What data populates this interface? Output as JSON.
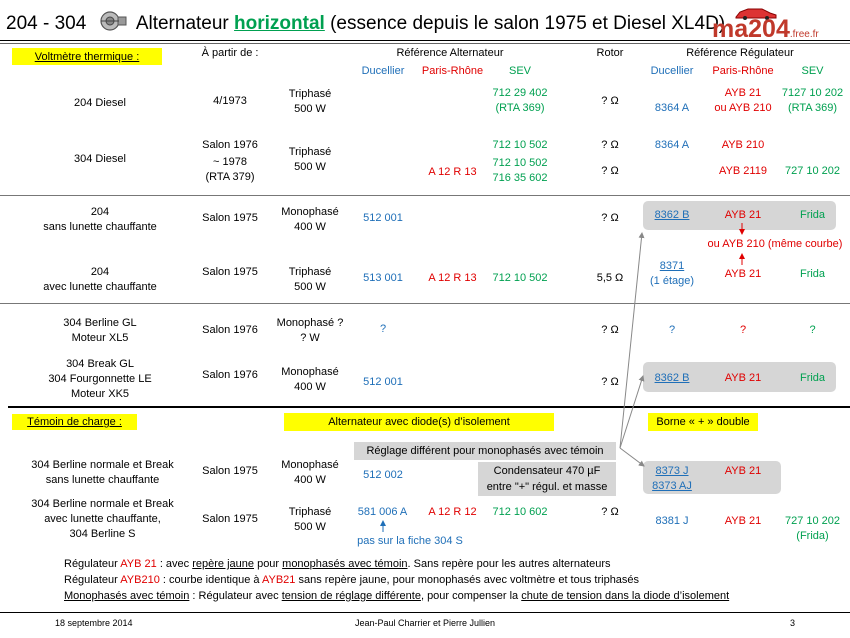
{
  "title": {
    "prefix": "204 - 304",
    "main": "Alternateur ",
    "highlight": "horizontal",
    "rest": " (essence depuis le salon 1975 et Diesel XL4D)"
  },
  "logo": {
    "text": "ma204",
    "suffix": ".free.fr"
  },
  "header": {
    "voltmetre": "Voltmètre thermique :",
    "a_partir": "À partir de :",
    "ref_alt": "Référence Alternateur",
    "rotor": "Rotor",
    "ref_reg": "Référence Régulateur",
    "ducellier": "Ducellier",
    "paris_rhone": "Paris-Rhône",
    "sev": "SEV"
  },
  "rows": {
    "r1": {
      "model": "204 Diesel",
      "date": "4/1973",
      "type1": "Triphasé",
      "type2": "500  W",
      "sev1": "712 29 402",
      "sev2": "(RTA 369)",
      "rotor": "? Ω",
      "rduc": "8364  A",
      "rpr1": "AYB 21",
      "rpr2": "ou AYB 210",
      "rsev1": "7127 10 202",
      "rsev2": "(RTA 369)"
    },
    "r2": {
      "model": "304 Diesel",
      "date1": "Salon 1976",
      "date2": "~ 1978",
      "date3": "(RTA 379)",
      "type1": "Triphasé",
      "type2": "500  W",
      "sevA": "712 10 502",
      "rotorA": "? Ω",
      "rducA": "8364  A",
      "rprA": "AYB 210",
      "pr": "A 12 R 13",
      "sevB1": "712 10 502",
      "sevB2": "716 35 602",
      "rotorB": "? Ω",
      "rprB": "AYB 2119",
      "rsevB": "727 10 202"
    },
    "r3": {
      "model1": "204",
      "model2": "sans lunette chauffante",
      "date": "Salon 1975",
      "type1": "Monophasé",
      "type2": "400  W",
      "duc": "512 001",
      "rotor": "? Ω",
      "rduc": "8362  B",
      "rpr": "AYB 21",
      "rsev": "Frida",
      "note": "ou AYB 210 (même courbe)"
    },
    "r4": {
      "model1": "204",
      "model2": "avec lunette chauffante",
      "date": "Salon 1975",
      "type1": "Triphasé",
      "type2": "500  W",
      "duc": "513  001",
      "pr": "A 12 R 13",
      "sev": "712 10 502",
      "rotor": "5,5 Ω",
      "rduc1": "8371",
      "rduc2": "(1 étage)",
      "rpr": "AYB 21",
      "rsev": "Frida"
    },
    "r5": {
      "model1": "304  Berline GL",
      "model2": "Moteur XL5",
      "date": "Salon 1976",
      "type1": "Monophasé ?",
      "type2": "? W",
      "duc": "?",
      "rotor": "? Ω",
      "rduc": "?",
      "rpr": "?",
      "rsev": "?"
    },
    "r6": {
      "model1": "304  Break GL",
      "model2": "304  Fourgonnette LE",
      "model3": "Moteur XK5",
      "date": "Salon 1976",
      "type1": "Monophasé",
      "type2": "400  W",
      "duc": "512  001",
      "rotor": "? Ω",
      "rduc": "8362  B",
      "rpr": "AYB 21",
      "rsev": "Frida"
    }
  },
  "section2": {
    "temoin": "Témoin de charge :",
    "alt_diode": "Alternateur avec diode(s) d’isolement",
    "borne": "Borne « + » double",
    "reglage": "Réglage différent pour monophasés avec témoin",
    "cond1": "Condensateur 470 µF",
    "cond2": "entre \"+\" régul. et masse"
  },
  "rows2": {
    "r7": {
      "model1": "304 Berline normale et Break",
      "model2": "sans lunette chauffante",
      "date": "Salon 1975",
      "type1": "Monophasé",
      "type2": "400  W",
      "duc": "512  002",
      "rduc1": "8373  J",
      "rduc2": "8373  AJ",
      "rpr": "AYB 21"
    },
    "r8": {
      "model1": "304 Berline normale et Break",
      "model2": "avec lunette chauffante,",
      "model3": "304  Berline S",
      "date": "Salon 1975",
      "type1": "Triphasé",
      "type2": "500  W",
      "duc": "581  006  A",
      "pr": "A 12  R 12",
      "sev": "712  10 602",
      "rotor": "? Ω",
      "rduc": "8381  J",
      "rpr": "AYB 21",
      "rsev1": "727 10 202",
      "rsev2": "(Frida)",
      "note": "pas sur la fiche 304 S"
    }
  },
  "notes": {
    "n1a": "Régulateur ",
    "n1b": "AYB 21",
    "n1c": "   : avec ",
    "n1d": "repère jaune",
    "n1e": " pour ",
    "n1f": "monophasés avec témoin",
    "n1g": ". Sans repère pour les autres alternateurs",
    "n2a": "Régulateur ",
    "n2b": "AYB210",
    "n2c": " : courbe identique à ",
    "n2d": "AYB21",
    "n2e": " sans repère jaune, pour monophasés avec voltmètre et tous triphasés",
    "n3a": "Monophasés avec témoin",
    "n3b": " : Régulateur avec ",
    "n3c": "tension de réglage différente",
    "n3d": ", pour compenser la ",
    "n3e": "chute de tension dans la diode d’isolement"
  },
  "footer": {
    "date": "18 septembre 2014",
    "authors": "Jean-Paul Charrier et Pierre Jullien",
    "page": "3"
  },
  "colors": {
    "blue": "#1f6fb8",
    "red": "#e00000",
    "green": "#00a050",
    "highlight": "#ffff00",
    "grey": "#d6d6d6"
  }
}
